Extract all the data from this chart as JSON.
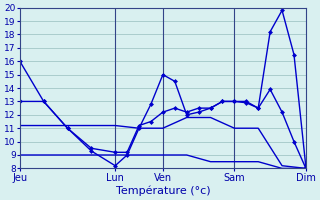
{
  "background_color": "#d9f0f0",
  "grid_color": "#aacccc",
  "line_color": "#0000cc",
  "xlabel": "Température (°c)",
  "ylim": [
    8,
    20
  ],
  "yticks": [
    8,
    9,
    10,
    11,
    12,
    13,
    14,
    15,
    16,
    17,
    18,
    19,
    20
  ],
  "day_labels": [
    "Jeu",
    "Lun",
    "Ven",
    "Sam",
    "Dim"
  ],
  "day_positions": [
    0,
    8,
    12,
    18,
    24
  ],
  "line1_x": [
    0,
    2,
    4,
    6,
    8,
    9,
    10,
    11,
    12,
    13,
    14,
    15,
    16,
    17,
    18,
    19,
    20,
    21,
    22,
    23,
    24
  ],
  "line1_y": [
    16,
    13,
    11,
    9.3,
    8.2,
    9.0,
    11.0,
    12.8,
    15.0,
    14.5,
    12.0,
    12.2,
    12.5,
    13.0,
    13.0,
    13.0,
    12.5,
    18.2,
    19.8,
    16.5,
    8.1
  ],
  "line2_x": [
    0,
    2,
    4,
    6,
    8,
    9,
    10,
    11,
    12,
    13,
    14,
    15,
    16,
    17,
    18,
    19,
    20,
    21,
    22,
    23,
    24
  ],
  "line2_y": [
    13.0,
    13.0,
    11.0,
    9.5,
    9.2,
    9.2,
    11.2,
    11.5,
    12.2,
    12.5,
    12.2,
    12.5,
    12.5,
    13.0,
    13.0,
    12.9,
    12.5,
    13.9,
    12.2,
    10.0,
    8.0
  ],
  "line3_x": [
    0,
    2,
    4,
    6,
    8,
    10,
    12,
    14,
    16,
    18,
    20,
    22,
    24
  ],
  "line3_y": [
    11.2,
    11.2,
    11.2,
    11.2,
    11.2,
    11.0,
    11.0,
    11.8,
    11.8,
    11.0,
    11.0,
    8.2,
    8.0
  ],
  "line4_x": [
    0,
    2,
    4,
    6,
    8,
    10,
    12,
    14,
    16,
    18,
    20,
    22,
    24
  ],
  "line4_y": [
    9.0,
    9.0,
    9.0,
    9.0,
    9.0,
    9.0,
    9.0,
    9.0,
    8.5,
    8.5,
    8.5,
    8.0,
    8.0
  ]
}
